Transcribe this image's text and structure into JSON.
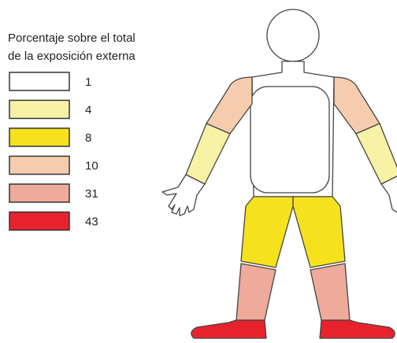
{
  "legend": {
    "title_lines": [
      "Porcentaje sobre el total",
      "de la exposición externa"
    ],
    "items": [
      {
        "color": "#ffffff",
        "label": 1
      },
      {
        "color": "#f8f2a6",
        "label": 4
      },
      {
        "color": "#f6e21c",
        "label": 8
      },
      {
        "color": "#f6ccae",
        "label": 10
      },
      {
        "color": "#eeaa9a",
        "label": 31
      },
      {
        "color": "#e8222c",
        "label": 43
      }
    ]
  }
}
